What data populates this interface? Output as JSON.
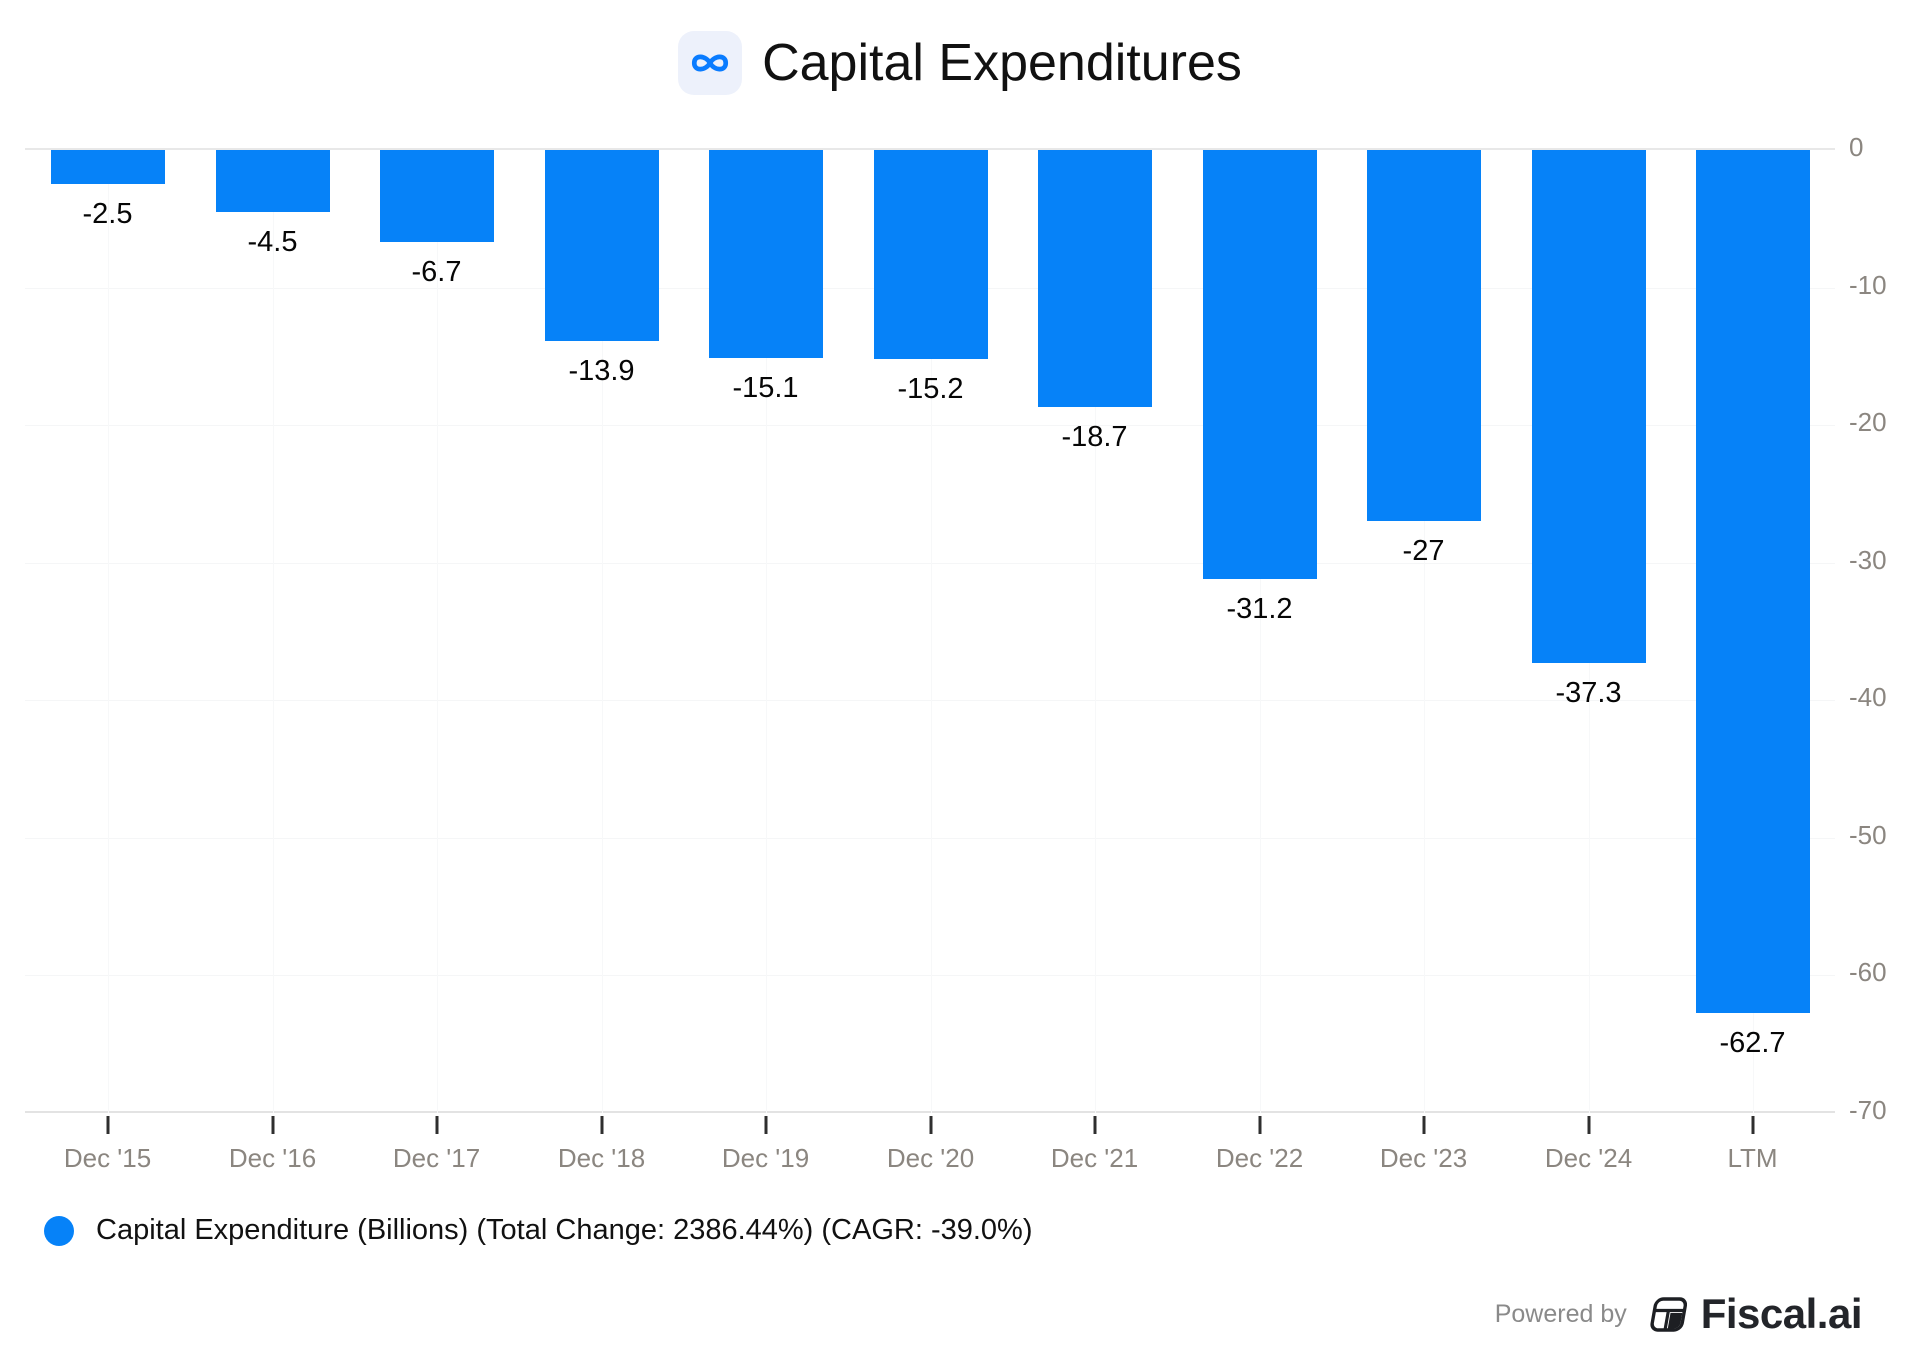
{
  "header": {
    "title": "Capital Expenditures",
    "logo": "meta-infinity-icon"
  },
  "chart_data": {
    "type": "bar",
    "title": "Capital Expenditures",
    "categories": [
      "Dec '15",
      "Dec '16",
      "Dec '17",
      "Dec '18",
      "Dec '19",
      "Dec '20",
      "Dec '21",
      "Dec '22",
      "Dec '23",
      "Dec '24",
      "LTM"
    ],
    "series": [
      {
        "name": "Capital Expenditure (Billions)",
        "values": [
          -2.5,
          -4.5,
          -6.7,
          -13.9,
          -15.1,
          -15.2,
          -18.7,
          -31.2,
          -27,
          -37.3,
          -62.7
        ]
      }
    ],
    "data_labels": [
      "-2.5",
      "-4.5",
      "-6.7",
      "-13.9",
      "-15.1",
      "-15.2",
      "-18.7",
      "-31.2",
      "-27",
      "-37.3",
      "-62.7"
    ],
    "ylim": [
      -70,
      0
    ],
    "yticks": [
      0,
      -10,
      -20,
      -30,
      -40,
      -50,
      -60,
      -70
    ],
    "ytick_labels": [
      "0",
      "-10",
      "-20",
      "-30",
      "-40",
      "-50",
      "-60",
      "-70"
    ],
    "xlabel": "",
    "ylabel": "",
    "grid": true,
    "legend_position": "bottom-left",
    "bar_color": "#0682f8"
  },
  "legend": {
    "marker": "circle",
    "marker_color": "#0682f8",
    "label": "Capital Expenditure (Billions) (Total Change: 2386.44%) (CAGR: -39.0%)"
  },
  "branding": {
    "powered_by": "Powered by",
    "brand": "Fiscal.ai",
    "logo": "fiscal-ai-table-icon"
  },
  "colors": {
    "bar": "#0682f8",
    "meta_blue": "#0a7cff",
    "logo_tile_bg": "#edf1fb",
    "axis_label": "#8b8680",
    "data_label": "#060606",
    "zero_line": "#e8e8e8",
    "gridline": "#f5f6f7"
  }
}
